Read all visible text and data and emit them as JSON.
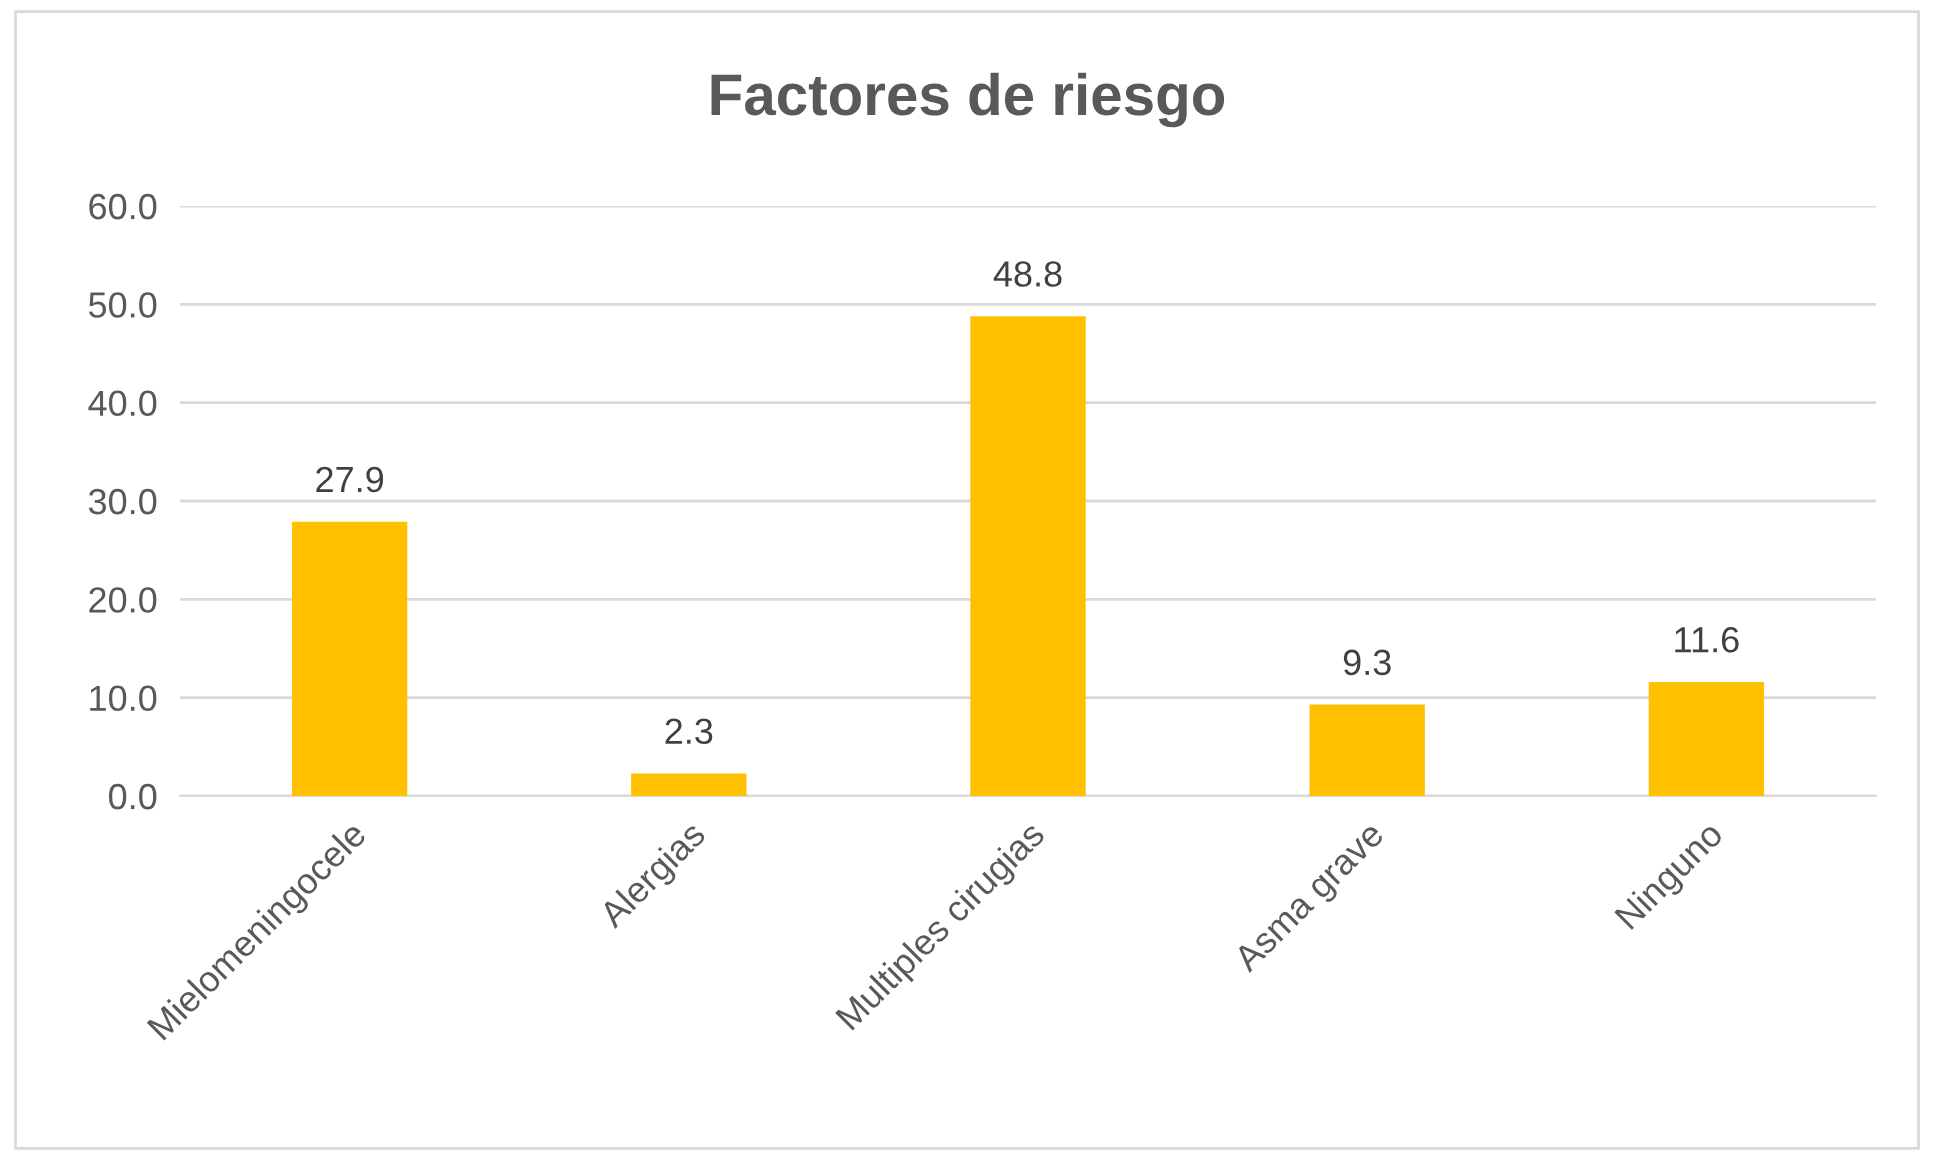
{
  "chart_data": {
    "type": "bar",
    "title": "Factores de riesgo",
    "categories": [
      "Mielomeningocele",
      "Alergias",
      "Multiples cirugias",
      "Asma grave",
      "Ninguno"
    ],
    "values": [
      27.9,
      2.3,
      48.8,
      9.3,
      11.6
    ],
    "color": "#ffc000",
    "ylim": [
      0,
      60
    ],
    "yticks": [
      {
        "value": 0,
        "label": "0.0"
      },
      {
        "value": 10,
        "label": "10.0"
      },
      {
        "value": 20,
        "label": "20.0"
      },
      {
        "value": 30,
        "label": "30.0"
      },
      {
        "value": 40,
        "label": "40.0"
      },
      {
        "value": 50,
        "label": "50.0"
      },
      {
        "value": 60,
        "label": "60.0"
      }
    ],
    "grid": "y",
    "data_labels": true,
    "legend": false
  }
}
